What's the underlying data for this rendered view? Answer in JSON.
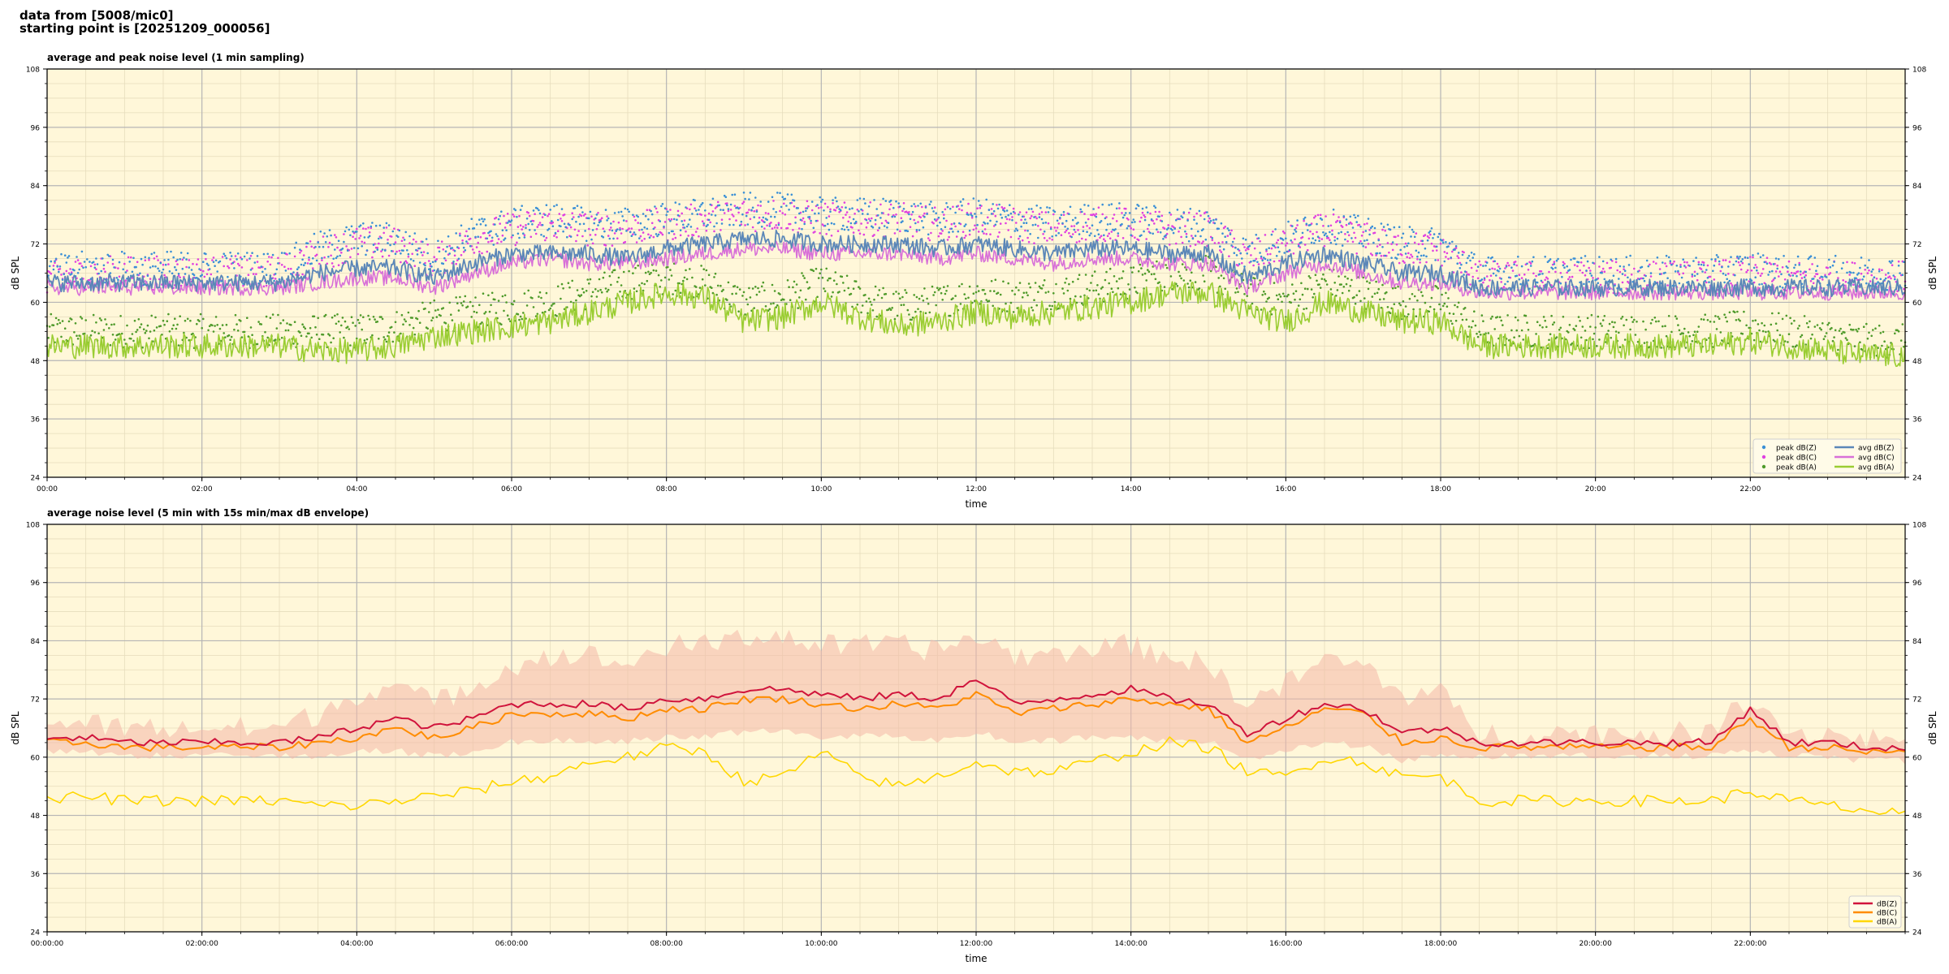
{
  "header": {
    "line1": "data from [5008/mic0]",
    "line2": "starting point is [20251209_000056]"
  },
  "colors": {
    "panel_bg": "#fff7d9",
    "peak_z": "#3a8fd6",
    "peak_c": "#e040e0",
    "peak_a": "#4e9a2a",
    "avg_z": "#5b87b8",
    "avg_c": "#d870d8",
    "avg_a": "#9acd32",
    "dbz": "#d0143c",
    "dbc": "#ff8c00",
    "dba": "#ffd700",
    "envelope": "#f4b8a8"
  },
  "chart_data": [
    {
      "type": "line",
      "title": "average and peak noise level (1 min sampling)",
      "xlabel": "time",
      "ylabel": "dB SPL",
      "ylim": [
        24,
        108
      ],
      "xlim_hours": [
        0,
        24
      ],
      "yticks": [
        "24",
        "36",
        "48",
        "60",
        "72",
        "84",
        "96",
        "108"
      ],
      "xticks": [
        "00:00",
        "02:00",
        "04:00",
        "06:00",
        "08:00",
        "10:00",
        "12:00",
        "14:00",
        "16:00",
        "18:00",
        "20:00",
        "22:00"
      ],
      "grid": true,
      "legend_position": "lower-right",
      "legend": [
        "peak dB(Z)",
        "peak dB(C)",
        "peak dB(A)",
        "avg dB(Z)",
        "avg dB(C)",
        "avg dB(A)"
      ],
      "x_hours": [
        0,
        0.5,
        1,
        1.5,
        2,
        2.5,
        3,
        3.5,
        4,
        4.5,
        5,
        5.5,
        6,
        6.5,
        7,
        7.5,
        8,
        8.5,
        9,
        9.5,
        10,
        10.5,
        11,
        11.5,
        12,
        12.5,
        13,
        13.5,
        14,
        14.5,
        15,
        15.5,
        16,
        16.5,
        17,
        17.5,
        18,
        18.5,
        19,
        19.5,
        20,
        20.5,
        21,
        21.5,
        22,
        22.5,
        23,
        23.5,
        24
      ],
      "series": [
        {
          "name": "avg dB(Z)",
          "style": "line",
          "values": [
            64,
            64,
            64,
            64,
            64,
            64,
            64,
            66,
            67,
            67,
            65,
            68,
            70,
            70,
            70,
            69,
            71,
            72,
            73,
            73,
            72,
            72,
            72,
            71,
            72,
            71,
            70,
            71,
            71,
            70,
            70,
            65,
            68,
            70,
            68,
            66,
            66,
            63,
            63,
            63,
            63,
            63,
            63,
            63,
            63,
            63,
            63,
            63,
            63
          ]
        },
        {
          "name": "avg dB(C)",
          "style": "line",
          "values": [
            63,
            63,
            63,
            63,
            63,
            63,
            63,
            64,
            65,
            65,
            63,
            66,
            68,
            69,
            68,
            68,
            69,
            70,
            71,
            71,
            70,
            70,
            70,
            69,
            70,
            69,
            68,
            69,
            69,
            68,
            68,
            63,
            66,
            68,
            66,
            64,
            64,
            62,
            62,
            62,
            62,
            62,
            62,
            62,
            62,
            62,
            62,
            62,
            62
          ]
        },
        {
          "name": "avg dB(A)",
          "style": "line",
          "values": [
            51,
            51,
            51,
            51,
            51,
            51,
            51,
            50,
            50,
            51,
            53,
            54,
            55,
            56,
            58,
            60,
            62,
            61,
            56,
            57,
            60,
            57,
            55,
            56,
            58,
            57,
            58,
            59,
            60,
            62,
            62,
            58,
            56,
            60,
            58,
            56,
            56,
            51,
            51,
            51,
            51,
            51,
            51,
            51,
            52,
            51,
            50,
            49,
            49
          ]
        },
        {
          "name": "peak dB(Z)",
          "style": "dots",
          "values": [
            65,
            66,
            66,
            66,
            66,
            66,
            66,
            70,
            72,
            72,
            68,
            73,
            75,
            76,
            75,
            75,
            76,
            77,
            78,
            78,
            77,
            77,
            77,
            76,
            77,
            76,
            75,
            76,
            76,
            75,
            75,
            69,
            72,
            75,
            73,
            71,
            71,
            65,
            65,
            65,
            65,
            65,
            65,
            65,
            66,
            65,
            65,
            65,
            65
          ]
        },
        {
          "name": "peak dB(C)",
          "style": "dots",
          "values": [
            64,
            65,
            65,
            65,
            65,
            65,
            65,
            69,
            71,
            71,
            67,
            72,
            74,
            75,
            74,
            74,
            75,
            76,
            77,
            77,
            76,
            76,
            76,
            75,
            76,
            75,
            74,
            75,
            75,
            74,
            74,
            68,
            71,
            74,
            72,
            70,
            70,
            64,
            64,
            64,
            64,
            64,
            64,
            64,
            65,
            64,
            64,
            64,
            64
          ]
        },
        {
          "name": "peak dB(A)",
          "style": "dots",
          "values": [
            53,
            53,
            53,
            53,
            53,
            53,
            53,
            53,
            53,
            54,
            56,
            57,
            58,
            59,
            61,
            63,
            64,
            63,
            59,
            60,
            63,
            60,
            58,
            59,
            61,
            60,
            61,
            62,
            63,
            65,
            65,
            61,
            59,
            63,
            61,
            59,
            59,
            53,
            53,
            53,
            53,
            53,
            53,
            53,
            54,
            53,
            52,
            51,
            51
          ]
        }
      ]
    },
    {
      "type": "line",
      "title": "average noise level (5 min with 15s min/max dB envelope)",
      "xlabel": "time",
      "ylabel": "dB SPL",
      "ylim": [
        24,
        108
      ],
      "xlim_hours": [
        0,
        24
      ],
      "yticks": [
        "24",
        "36",
        "48",
        "60",
        "72",
        "84",
        "96",
        "108"
      ],
      "xticks": [
        "00:00:00",
        "02:00:00",
        "04:00:00",
        "06:00:00",
        "08:00:00",
        "10:00:00",
        "12:00:00",
        "14:00:00",
        "16:00:00",
        "18:00:00",
        "20:00:00",
        "22:00:00"
      ],
      "grid": true,
      "legend_position": "lower-right",
      "legend": [
        "dB(Z)",
        "dB(C)",
        "dB(A)"
      ],
      "x_hours": [
        0,
        0.5,
        1,
        1.5,
        2,
        2.5,
        3,
        3.5,
        4,
        4.5,
        5,
        5.5,
        6,
        6.5,
        7,
        7.5,
        8,
        8.5,
        9,
        9.5,
        10,
        10.5,
        11,
        11.5,
        12,
        12.5,
        13,
        13.5,
        14,
        14.5,
        15,
        15.5,
        16,
        16.5,
        17,
        17.5,
        18,
        18.5,
        19,
        19.5,
        20,
        20.5,
        21,
        21.5,
        22,
        22.5,
        23,
        23.5,
        24
      ],
      "series": [
        {
          "name": "dB(Z)",
          "style": "line",
          "values": [
            64,
            64,
            63,
            63,
            63,
            63,
            63,
            64,
            66,
            68,
            66,
            68,
            71,
            71,
            71,
            70,
            72,
            72,
            74,
            74,
            73,
            72,
            73,
            72,
            76,
            71,
            72,
            73,
            74,
            72,
            71,
            65,
            68,
            71,
            70,
            65,
            66,
            63,
            63,
            63,
            63,
            63,
            63,
            63,
            70,
            63,
            63,
            62,
            62
          ]
        },
        {
          "name": "dB(C)",
          "style": "line",
          "values": [
            63,
            63,
            62,
            62,
            62,
            62,
            62,
            63,
            64,
            66,
            64,
            66,
            69,
            69,
            69,
            68,
            70,
            70,
            72,
            72,
            71,
            70,
            71,
            70,
            73,
            69,
            70,
            71,
            72,
            71,
            70,
            63,
            66,
            70,
            69,
            63,
            64,
            62,
            62,
            62,
            62,
            62,
            62,
            62,
            68,
            62,
            62,
            61,
            61
          ]
        },
        {
          "name": "dB(A)",
          "style": "line",
          "values": [
            51,
            52,
            51,
            51,
            51,
            51,
            51,
            50,
            50,
            51,
            52,
            53,
            55,
            56,
            59,
            60,
            62,
            61,
            55,
            56,
            61,
            56,
            54,
            56,
            59,
            57,
            57,
            59,
            61,
            63,
            62,
            57,
            56,
            60,
            59,
            56,
            56,
            51,
            51,
            51,
            51,
            51,
            51,
            51,
            53,
            51,
            50,
            49,
            48
          ]
        },
        {
          "name": "envelope max",
          "style": "band_upper",
          "values": [
            66,
            66,
            65,
            65,
            65,
            65,
            65,
            68,
            72,
            74,
            70,
            74,
            78,
            80,
            80,
            78,
            82,
            82,
            84,
            84,
            82,
            82,
            82,
            81,
            84,
            80,
            80,
            82,
            82,
            80,
            78,
            70,
            74,
            79,
            78,
            72,
            72,
            64,
            64,
            64,
            64,
            64,
            64,
            64,
            72,
            64,
            64,
            63,
            63
          ]
        },
        {
          "name": "envelope min",
          "style": "band_lower",
          "values": [
            62,
            62,
            61,
            61,
            61,
            61,
            61,
            61,
            62,
            62,
            61,
            62,
            64,
            64,
            64,
            64,
            65,
            65,
            66,
            66,
            65,
            65,
            65,
            64,
            66,
            64,
            64,
            65,
            65,
            64,
            64,
            60,
            62,
            64,
            63,
            60,
            61,
            61,
            61,
            61,
            61,
            61,
            61,
            61,
            62,
            61,
            61,
            60,
            60
          ]
        }
      ]
    }
  ]
}
